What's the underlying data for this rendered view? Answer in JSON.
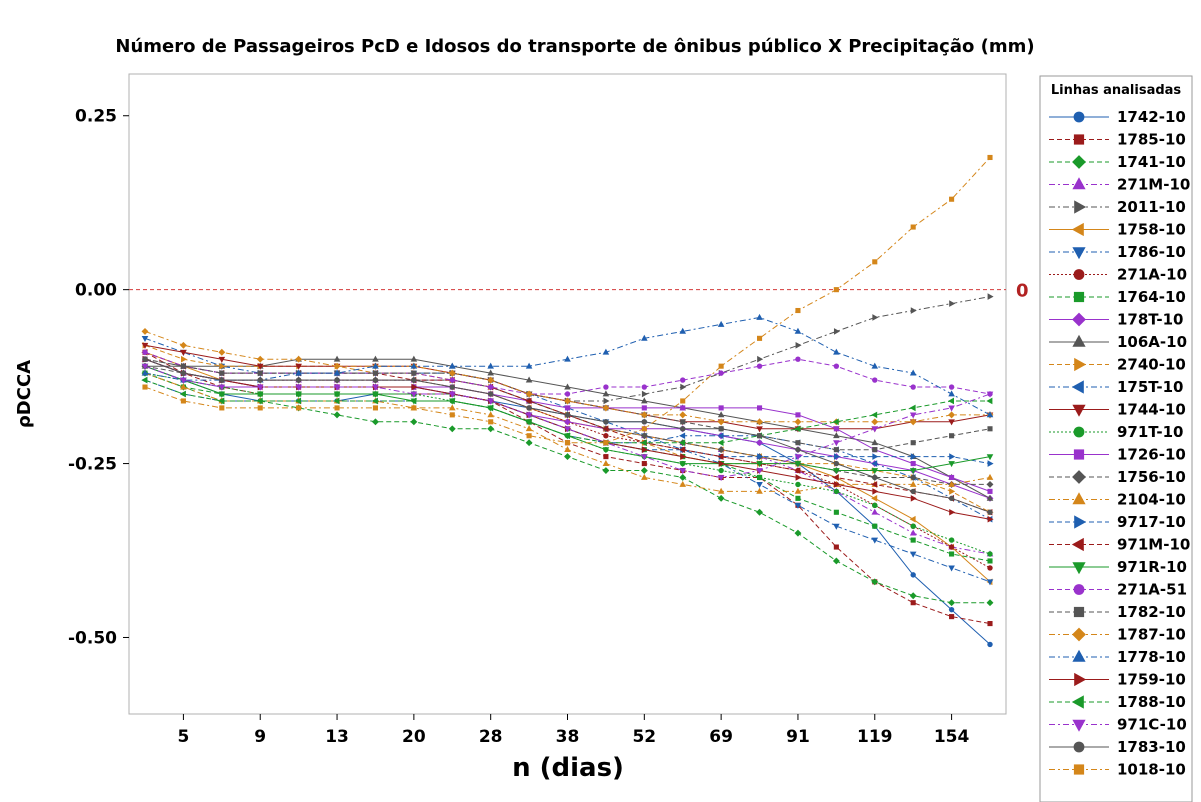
{
  "chart_data": {
    "type": "line",
    "title": "Número de Passageiros PcD e Idosos do transporte de ônibus público X Precipitação (mm)",
    "xlabel": "n (dias)",
    "ylabel": "ρDCCA",
    "ylim": [
      -0.61,
      0.31
    ],
    "yticks": [
      0.25,
      0.0,
      -0.25,
      -0.5
    ],
    "ytick_labels": [
      "0.25",
      "0.00",
      "-0.25",
      "-0.50"
    ],
    "x_categories": [
      "4",
      "5",
      "7",
      "9",
      "11",
      "13",
      "16",
      "20",
      "24",
      "28",
      "33",
      "38",
      "45",
      "52",
      "60",
      "69",
      "79",
      "91",
      "104",
      "119",
      "136",
      "154",
      "175"
    ],
    "xtick_labels": [
      "5",
      "9",
      "13",
      "20",
      "28",
      "38",
      "52",
      "69",
      "91",
      "119",
      "154"
    ],
    "reference_line": {
      "value": 0,
      "label": "0"
    },
    "legend_title": "Linhas analisadas",
    "legend_position": "right",
    "grid": false,
    "series": [
      {
        "name": "1742-10",
        "color": "#1f5fb0",
        "marker": "circle",
        "dash": "solid",
        "values": [
          -0.11,
          -0.13,
          -0.15,
          -0.16,
          -0.16,
          -0.16,
          -0.15,
          -0.15,
          -0.15,
          -0.16,
          -0.17,
          -0.18,
          -0.19,
          -0.19,
          -0.2,
          -0.21,
          -0.22,
          -0.25,
          -0.29,
          -0.34,
          -0.41,
          -0.46,
          -0.51
        ]
      },
      {
        "name": "1785-10",
        "color": "#9b1b1b",
        "marker": "square",
        "dash": "dash",
        "values": [
          -0.09,
          -0.12,
          -0.14,
          -0.15,
          -0.15,
          -0.15,
          -0.15,
          -0.15,
          -0.15,
          -0.16,
          -0.19,
          -0.22,
          -0.24,
          -0.25,
          -0.26,
          -0.27,
          -0.27,
          -0.31,
          -0.37,
          -0.42,
          -0.45,
          -0.47,
          -0.48
        ]
      },
      {
        "name": "1741-10",
        "color": "#1a9a2a",
        "marker": "diamond",
        "dash": "dash",
        "values": [
          -0.12,
          -0.14,
          -0.16,
          -0.16,
          -0.17,
          -0.18,
          -0.19,
          -0.19,
          -0.2,
          -0.2,
          -0.22,
          -0.24,
          -0.26,
          -0.26,
          -0.27,
          -0.3,
          -0.32,
          -0.35,
          -0.39,
          -0.42,
          -0.44,
          -0.45,
          -0.45
        ]
      },
      {
        "name": "271M-10",
        "color": "#9932cc",
        "marker": "triangle-up",
        "dash": "dashdot",
        "values": [
          -0.1,
          -0.12,
          -0.13,
          -0.13,
          -0.13,
          -0.13,
          -0.13,
          -0.13,
          -0.13,
          -0.14,
          -0.16,
          -0.18,
          -0.2,
          -0.21,
          -0.22,
          -0.23,
          -0.24,
          -0.26,
          -0.29,
          -0.32,
          -0.35,
          -0.37,
          -0.38
        ]
      },
      {
        "name": "2011-10",
        "color": "#555555",
        "marker": "triangle-right",
        "dash": "dashdot",
        "values": [
          -0.1,
          -0.11,
          -0.12,
          -0.12,
          -0.12,
          -0.12,
          -0.12,
          -0.12,
          -0.12,
          -0.13,
          -0.15,
          -0.16,
          -0.16,
          -0.15,
          -0.14,
          -0.12,
          -0.1,
          -0.08,
          -0.06,
          -0.04,
          -0.03,
          -0.02,
          -0.01
        ]
      },
      {
        "name": "1758-10",
        "color": "#d4861a",
        "marker": "triangle-left",
        "dash": "solid",
        "values": [
          -0.09,
          -0.11,
          -0.13,
          -0.14,
          -0.14,
          -0.14,
          -0.14,
          -0.14,
          -0.14,
          -0.15,
          -0.17,
          -0.19,
          -0.2,
          -0.21,
          -0.22,
          -0.23,
          -0.24,
          -0.25,
          -0.27,
          -0.3,
          -0.33,
          -0.37,
          -0.42
        ]
      },
      {
        "name": "1786-10",
        "color": "#1f5fb0",
        "marker": "triangle-down",
        "dash": "dashdot",
        "values": [
          -0.07,
          -0.09,
          -0.11,
          -0.12,
          -0.12,
          -0.12,
          -0.12,
          -0.12,
          -0.12,
          -0.13,
          -0.15,
          -0.17,
          -0.19,
          -0.21,
          -0.23,
          -0.25,
          -0.28,
          -0.31,
          -0.34,
          -0.36,
          -0.38,
          -0.4,
          -0.42
        ]
      },
      {
        "name": "271A-10",
        "color": "#9b1b1b",
        "marker": "circle",
        "dash": "dot",
        "values": [
          -0.1,
          -0.12,
          -0.13,
          -0.13,
          -0.13,
          -0.13,
          -0.13,
          -0.13,
          -0.14,
          -0.15,
          -0.17,
          -0.19,
          -0.21,
          -0.22,
          -0.23,
          -0.24,
          -0.25,
          -0.26,
          -0.28,
          -0.31,
          -0.34,
          -0.37,
          -0.4
        ]
      },
      {
        "name": "1764-10",
        "color": "#1a9a2a",
        "marker": "square",
        "dash": "dash",
        "values": [
          -0.12,
          -0.14,
          -0.15,
          -0.15,
          -0.15,
          -0.15,
          -0.15,
          -0.15,
          -0.15,
          -0.16,
          -0.18,
          -0.2,
          -0.22,
          -0.23,
          -0.24,
          -0.25,
          -0.27,
          -0.3,
          -0.32,
          -0.34,
          -0.36,
          -0.38,
          -0.39
        ]
      },
      {
        "name": "178T-10",
        "color": "#9932cc",
        "marker": "diamond",
        "dash": "solid",
        "values": [
          -0.11,
          -0.13,
          -0.14,
          -0.14,
          -0.14,
          -0.14,
          -0.14,
          -0.14,
          -0.15,
          -0.16,
          -0.18,
          -0.19,
          -0.2,
          -0.2,
          -0.2,
          -0.21,
          -0.22,
          -0.23,
          -0.24,
          -0.25,
          -0.26,
          -0.28,
          -0.3
        ]
      },
      {
        "name": "106A-10",
        "color": "#555555",
        "marker": "triangle-up",
        "dash": "solid",
        "values": [
          -0.11,
          -0.11,
          -0.11,
          -0.11,
          -0.1,
          -0.1,
          -0.1,
          -0.1,
          -0.11,
          -0.12,
          -0.13,
          -0.14,
          -0.15,
          -0.16,
          -0.17,
          -0.18,
          -0.19,
          -0.2,
          -0.21,
          -0.22,
          -0.24,
          -0.27,
          -0.3
        ]
      },
      {
        "name": "2740-10",
        "color": "#d4861a",
        "marker": "triangle-right",
        "dash": "dash",
        "values": [
          -0.08,
          -0.1,
          -0.11,
          -0.11,
          -0.11,
          -0.11,
          -0.12,
          -0.12,
          -0.13,
          -0.14,
          -0.16,
          -0.18,
          -0.2,
          -0.22,
          -0.24,
          -0.25,
          -0.25,
          -0.25,
          -0.25,
          -0.26,
          -0.27,
          -0.29,
          -0.32
        ]
      },
      {
        "name": "175T-10",
        "color": "#1f5fb0",
        "marker": "triangle-left",
        "dash": "dashdot",
        "values": [
          -0.13,
          -0.15,
          -0.16,
          -0.16,
          -0.16,
          -0.16,
          -0.16,
          -0.16,
          -0.16,
          -0.17,
          -0.19,
          -0.21,
          -0.22,
          -0.22,
          -0.21,
          -0.21,
          -0.21,
          -0.22,
          -0.23,
          -0.25,
          -0.27,
          -0.3,
          -0.33
        ]
      },
      {
        "name": "1744-10",
        "color": "#9b1b1b",
        "marker": "triangle-down",
        "dash": "solid",
        "values": [
          -0.08,
          -0.09,
          -0.1,
          -0.11,
          -0.11,
          -0.11,
          -0.11,
          -0.11,
          -0.12,
          -0.13,
          -0.15,
          -0.16,
          -0.17,
          -0.18,
          -0.19,
          -0.19,
          -0.2,
          -0.2,
          -0.2,
          -0.2,
          -0.19,
          -0.19,
          -0.18
        ]
      },
      {
        "name": "971T-10",
        "color": "#1a9a2a",
        "marker": "circle",
        "dash": "dot",
        "values": [
          -0.12,
          -0.13,
          -0.14,
          -0.15,
          -0.15,
          -0.15,
          -0.15,
          -0.15,
          -0.16,
          -0.17,
          -0.19,
          -0.21,
          -0.23,
          -0.24,
          -0.25,
          -0.26,
          -0.27,
          -0.28,
          -0.29,
          -0.31,
          -0.34,
          -0.36,
          -0.38
        ]
      },
      {
        "name": "1726-10",
        "color": "#9932cc",
        "marker": "square",
        "dash": "solid",
        "values": [
          -0.1,
          -0.12,
          -0.13,
          -0.14,
          -0.14,
          -0.14,
          -0.14,
          -0.14,
          -0.14,
          -0.15,
          -0.16,
          -0.17,
          -0.17,
          -0.17,
          -0.17,
          -0.17,
          -0.17,
          -0.18,
          -0.2,
          -0.23,
          -0.25,
          -0.27,
          -0.29
        ]
      },
      {
        "name": "1756-10",
        "color": "#555555",
        "marker": "diamond",
        "dash": "dash",
        "values": [
          -0.11,
          -0.12,
          -0.13,
          -0.13,
          -0.13,
          -0.13,
          -0.13,
          -0.13,
          -0.13,
          -0.14,
          -0.16,
          -0.18,
          -0.2,
          -0.21,
          -0.22,
          -0.23,
          -0.24,
          -0.25,
          -0.26,
          -0.27,
          -0.27,
          -0.28,
          -0.28
        ]
      },
      {
        "name": "2104-10",
        "color": "#d4861a",
        "marker": "triangle-up",
        "dash": "dashdot",
        "values": [
          -0.12,
          -0.14,
          -0.16,
          -0.16,
          -0.16,
          -0.16,
          -0.16,
          -0.17,
          -0.17,
          -0.18,
          -0.2,
          -0.23,
          -0.25,
          -0.27,
          -0.28,
          -0.29,
          -0.29,
          -0.29,
          -0.28,
          -0.28,
          -0.28,
          -0.28,
          -0.27
        ]
      },
      {
        "name": "9717-10",
        "color": "#1f5fb0",
        "marker": "triangle-right",
        "dash": "dash",
        "values": [
          -0.1,
          -0.12,
          -0.13,
          -0.14,
          -0.14,
          -0.14,
          -0.14,
          -0.14,
          -0.15,
          -0.16,
          -0.18,
          -0.2,
          -0.22,
          -0.23,
          -0.23,
          -0.24,
          -0.24,
          -0.24,
          -0.24,
          -0.24,
          -0.24,
          -0.24,
          -0.25
        ]
      },
      {
        "name": "971M-10",
        "color": "#9b1b1b",
        "marker": "triangle-left",
        "dash": "dash",
        "values": [
          -0.09,
          -0.11,
          -0.12,
          -0.12,
          -0.12,
          -0.12,
          -0.12,
          -0.13,
          -0.13,
          -0.14,
          -0.16,
          -0.18,
          -0.2,
          -0.22,
          -0.23,
          -0.24,
          -0.25,
          -0.26,
          -0.27,
          -0.28,
          -0.29,
          -0.3,
          -0.32
        ]
      },
      {
        "name": "971R-10",
        "color": "#1a9a2a",
        "marker": "triangle-down",
        "dash": "solid",
        "values": [
          -0.11,
          -0.13,
          -0.15,
          -0.15,
          -0.15,
          -0.15,
          -0.15,
          -0.16,
          -0.16,
          -0.17,
          -0.19,
          -0.21,
          -0.23,
          -0.24,
          -0.25,
          -0.25,
          -0.25,
          -0.25,
          -0.26,
          -0.26,
          -0.26,
          -0.25,
          -0.24
        ]
      },
      {
        "name": "271A-51",
        "color": "#9932cc",
        "marker": "circle",
        "dash": "dash",
        "values": [
          -0.09,
          -0.11,
          -0.12,
          -0.12,
          -0.12,
          -0.12,
          -0.12,
          -0.12,
          -0.13,
          -0.14,
          -0.15,
          -0.15,
          -0.14,
          -0.14,
          -0.13,
          -0.12,
          -0.11,
          -0.1,
          -0.11,
          -0.13,
          -0.14,
          -0.14,
          -0.15
        ]
      },
      {
        "name": "1782-10",
        "color": "#555555",
        "marker": "square",
        "dash": "dash",
        "values": [
          -0.1,
          -0.11,
          -0.12,
          -0.12,
          -0.12,
          -0.12,
          -0.12,
          -0.12,
          -0.12,
          -0.13,
          -0.15,
          -0.16,
          -0.17,
          -0.18,
          -0.19,
          -0.2,
          -0.21,
          -0.22,
          -0.23,
          -0.23,
          -0.22,
          -0.21,
          -0.2
        ]
      },
      {
        "name": "1787-10",
        "color": "#d4861a",
        "marker": "diamond",
        "dash": "dashdot",
        "values": [
          -0.06,
          -0.08,
          -0.09,
          -0.1,
          -0.1,
          -0.11,
          -0.11,
          -0.11,
          -0.12,
          -0.13,
          -0.15,
          -0.16,
          -0.17,
          -0.18,
          -0.18,
          -0.19,
          -0.19,
          -0.19,
          -0.19,
          -0.19,
          -0.19,
          -0.18,
          -0.18
        ]
      },
      {
        "name": "1778-10",
        "color": "#1f5fb0",
        "marker": "triangle-up",
        "dash": "dashdot",
        "values": [
          -0.12,
          -0.13,
          -0.13,
          -0.13,
          -0.12,
          -0.12,
          -0.11,
          -0.11,
          -0.11,
          -0.11,
          -0.11,
          -0.1,
          -0.09,
          -0.07,
          -0.06,
          -0.05,
          -0.04,
          -0.06,
          -0.09,
          -0.11,
          -0.12,
          -0.15,
          -0.18
        ]
      },
      {
        "name": "1759-10",
        "color": "#9b1b1b",
        "marker": "triangle-right",
        "dash": "solid",
        "values": [
          -0.1,
          -0.12,
          -0.13,
          -0.14,
          -0.14,
          -0.14,
          -0.14,
          -0.14,
          -0.15,
          -0.16,
          -0.18,
          -0.2,
          -0.22,
          -0.23,
          -0.24,
          -0.25,
          -0.26,
          -0.27,
          -0.28,
          -0.29,
          -0.3,
          -0.32,
          -0.33
        ]
      },
      {
        "name": "1788-10",
        "color": "#1a9a2a",
        "marker": "triangle-left",
        "dash": "dash",
        "values": [
          -0.13,
          -0.15,
          -0.16,
          -0.16,
          -0.16,
          -0.16,
          -0.16,
          -0.16,
          -0.16,
          -0.17,
          -0.19,
          -0.21,
          -0.22,
          -0.22,
          -0.22,
          -0.22,
          -0.21,
          -0.2,
          -0.19,
          -0.18,
          -0.17,
          -0.16,
          -0.16
        ]
      },
      {
        "name": "971C-10",
        "color": "#9932cc",
        "marker": "triangle-down",
        "dash": "dashdot",
        "values": [
          -0.11,
          -0.13,
          -0.14,
          -0.14,
          -0.14,
          -0.14,
          -0.14,
          -0.15,
          -0.15,
          -0.16,
          -0.18,
          -0.2,
          -0.22,
          -0.24,
          -0.26,
          -0.27,
          -0.26,
          -0.24,
          -0.22,
          -0.2,
          -0.18,
          -0.17,
          -0.15
        ]
      },
      {
        "name": "1783-10",
        "color": "#555555",
        "marker": "circle",
        "dash": "solid",
        "values": [
          -0.1,
          -0.12,
          -0.13,
          -0.13,
          -0.13,
          -0.13,
          -0.13,
          -0.13,
          -0.14,
          -0.15,
          -0.17,
          -0.18,
          -0.19,
          -0.19,
          -0.2,
          -0.2,
          -0.21,
          -0.23,
          -0.25,
          -0.27,
          -0.29,
          -0.3,
          -0.32
        ]
      },
      {
        "name": "1018-10",
        "color": "#d4861a",
        "marker": "square",
        "dash": "dashdot",
        "values": [
          -0.14,
          -0.16,
          -0.17,
          -0.17,
          -0.17,
          -0.17,
          -0.17,
          -0.17,
          -0.18,
          -0.19,
          -0.21,
          -0.22,
          -0.22,
          -0.2,
          -0.16,
          -0.11,
          -0.07,
          -0.03,
          0.0,
          0.04,
          0.09,
          0.13,
          0.19
        ]
      }
    ]
  }
}
